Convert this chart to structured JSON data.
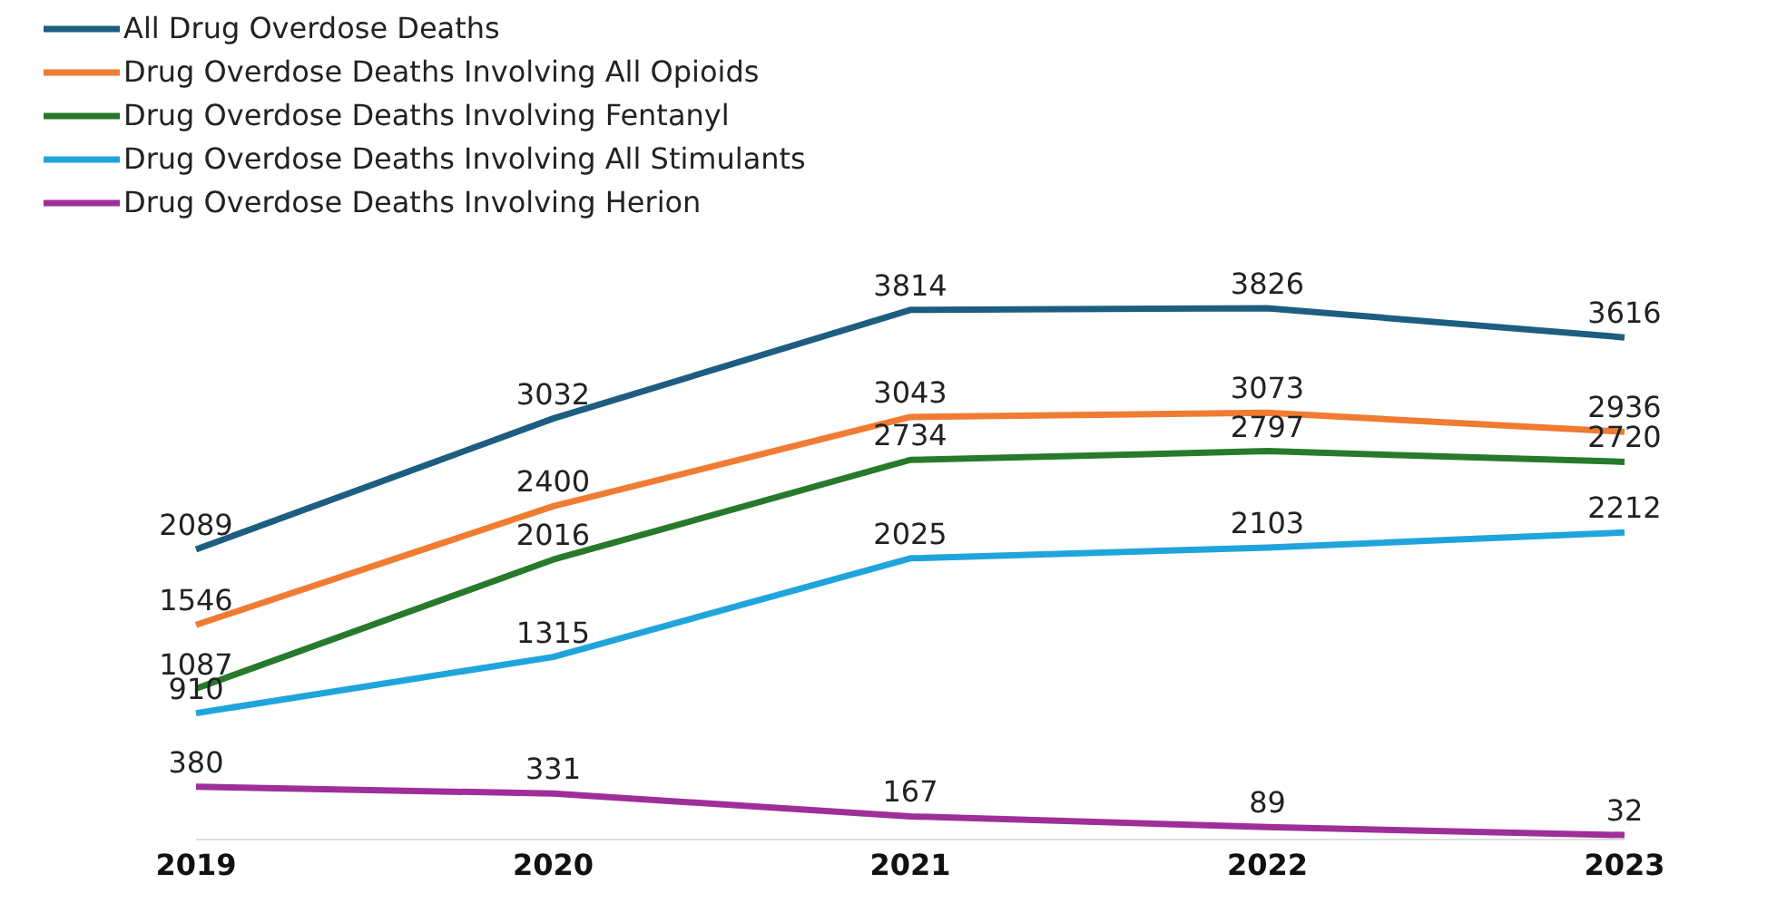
{
  "chart_data": {
    "type": "line",
    "categories": [
      "2019",
      "2020",
      "2021",
      "2022",
      "2023"
    ],
    "series": [
      {
        "name": "All Drug Overdose Deaths",
        "color": "#1d5e80",
        "values": [
          2089,
          3032,
          3814,
          3826,
          3616
        ]
      },
      {
        "name": "Drug Overdose Deaths Involving All Opioids",
        "color": "#f07b32",
        "values": [
          1546,
          2400,
          3043,
          3073,
          2936
        ]
      },
      {
        "name": "Drug Overdose Deaths Involving Fentanyl",
        "color": "#277a2c",
        "values": [
          1087,
          2016,
          2734,
          2797,
          2720
        ]
      },
      {
        "name": "Drug Overdose Deaths Involving All Stimulants",
        "color": "#20a4dc",
        "values": [
          910,
          1315,
          2025,
          2103,
          2212
        ]
      },
      {
        "name": "Drug Overdose Deaths Involving Herion",
        "color": "#9e2f99",
        "values": [
          380,
          331,
          167,
          89,
          32
        ]
      }
    ],
    "data_labels": true,
    "legend": "top left",
    "marker": "none",
    "tick_labels": "x"
  }
}
